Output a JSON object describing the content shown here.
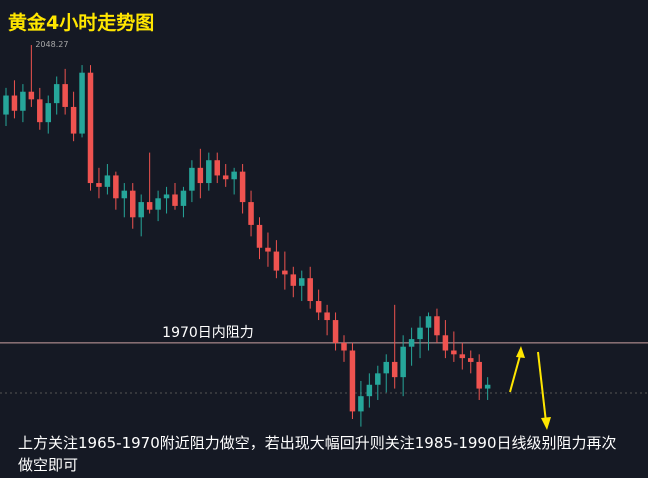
{
  "chart_data": {
    "type": "candlestick",
    "title": "黄金4小时走势图",
    "up_color": "#26a69a",
    "down_color": "#ef5350",
    "ylim": [
      1934.5,
      2060.1
    ],
    "resistance_line": {
      "value": 1970,
      "label": "1970日内阻力"
    },
    "high_label": 2048.27,
    "note": "上方关注1965-1970附近阻力做空，若出现大幅回升则关注1985-1990日线级别阻力再次做空即可",
    "ohlc": [
      [
        2030,
        2037,
        2027,
        2035
      ],
      [
        2035,
        2039,
        2029,
        2031
      ],
      [
        2031,
        2038,
        2028,
        2036
      ],
      [
        2036,
        2048.27,
        2032,
        2034
      ],
      [
        2034,
        2037,
        2026,
        2028
      ],
      [
        2028,
        2035,
        2025,
        2033
      ],
      [
        2033,
        2040,
        2030,
        2038
      ],
      [
        2038,
        2042,
        2030,
        2032
      ],
      [
        2032,
        2036,
        2023,
        2025
      ],
      [
        2025,
        2043,
        2024,
        2041
      ],
      [
        2041,
        2043,
        2010,
        2012
      ],
      [
        2012,
        2016,
        2008,
        2011
      ],
      [
        2011,
        2017,
        2009,
        2014
      ],
      [
        2014,
        2015,
        2005,
        2008
      ],
      [
        2008,
        2012,
        2003,
        2010
      ],
      [
        2010,
        2012,
        2000,
        2003
      ],
      [
        2003,
        2009,
        1998,
        2007
      ],
      [
        2007,
        2020,
        2004,
        2005
      ],
      [
        2005,
        2010,
        2002,
        2008
      ],
      [
        2008,
        2011,
        2004,
        2009
      ],
      [
        2009,
        2012,
        2005,
        2006
      ],
      [
        2006,
        2011,
        2003,
        2010
      ],
      [
        2010,
        2018,
        2007,
        2016
      ],
      [
        2016,
        2021,
        2008,
        2012
      ],
      [
        2012,
        2020,
        2010,
        2018
      ],
      [
        2018,
        2020,
        2012,
        2014
      ],
      [
        2014,
        2017,
        2011,
        2013
      ],
      [
        2013,
        2016,
        2009,
        2015
      ],
      [
        2015,
        2017,
        2004,
        2007
      ],
      [
        2007,
        2010,
        1998,
        2001
      ],
      [
        2001,
        2003,
        1992,
        1995
      ],
      [
        1995,
        1999,
        1990,
        1994
      ],
      [
        1994,
        1997,
        1987,
        1989
      ],
      [
        1989,
        1994,
        1984,
        1988
      ],
      [
        1988,
        1990,
        1982,
        1985
      ],
      [
        1985,
        1989,
        1981,
        1987
      ],
      [
        1987,
        1990,
        1979,
        1981
      ],
      [
        1981,
        1984,
        1976,
        1978
      ],
      [
        1978,
        1980,
        1972,
        1976
      ],
      [
        1976,
        1978,
        1968,
        1970
      ],
      [
        1970,
        1972,
        1965,
        1968
      ],
      [
        1968,
        1970,
        1950,
        1952
      ],
      [
        1952,
        1960,
        1948,
        1956
      ],
      [
        1956,
        1962,
        1953,
        1959
      ],
      [
        1959,
        1964,
        1955,
        1962
      ],
      [
        1962,
        1967,
        1957,
        1965
      ],
      [
        1965,
        1980,
        1958,
        1961
      ],
      [
        1961,
        1972,
        1956,
        1969
      ],
      [
        1969,
        1974,
        1964,
        1971
      ],
      [
        1971,
        1977,
        1966,
        1974
      ],
      [
        1974,
        1978,
        1968,
        1977
      ],
      [
        1977,
        1979,
        1970,
        1972
      ],
      [
        1972,
        1976,
        1966,
        1968
      ],
      [
        1968,
        1973,
        1965,
        1967
      ],
      [
        1967,
        1970,
        1963,
        1966
      ],
      [
        1966,
        1968,
        1962,
        1965
      ],
      [
        1965,
        1967,
        1955,
        1958
      ],
      [
        1958,
        1961,
        1955,
        1959
      ]
    ]
  }
}
